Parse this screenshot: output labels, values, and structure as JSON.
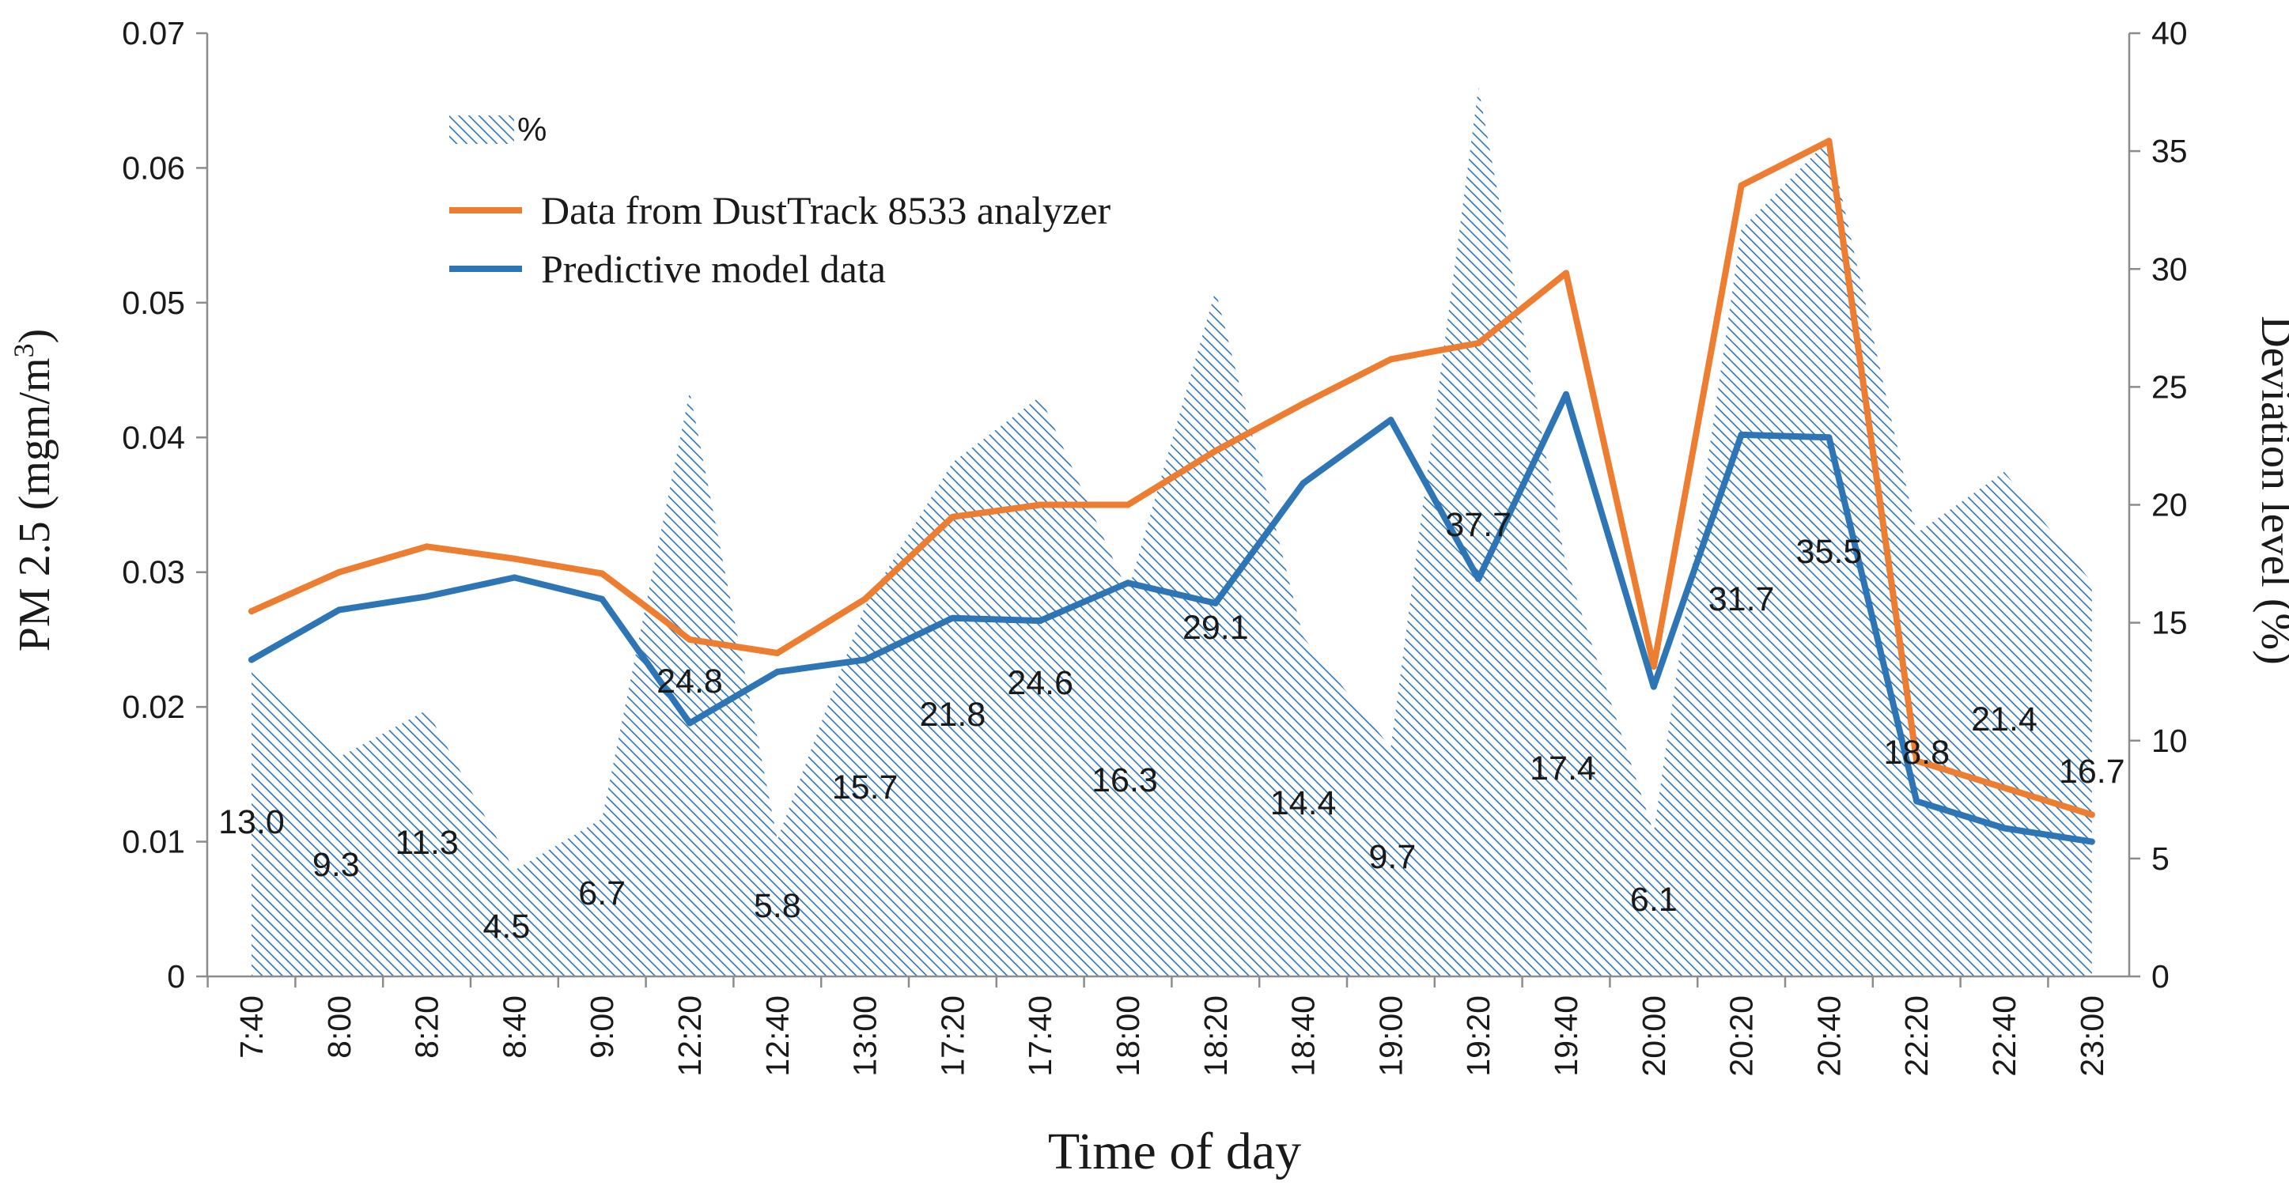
{
  "chart_data": {
    "type": "line",
    "xlabel": "Time of day",
    "ylabel_left": "PM 2.5 (mgm/m3)",
    "ylabel_left_main": "PM 2.5 (mgm/m",
    "ylabel_left_sup": "3",
    "ylabel_left_close": ")",
    "ylabel_right": "Deviation level (%)",
    "categories": [
      "7:40",
      "8:00",
      "8:20",
      "8:40",
      "9:00",
      "12:20",
      "12:40",
      "13:00",
      "17:20",
      "17:40",
      "18:00",
      "18:20",
      "18:40",
      "19:00",
      "19:20",
      "19:40",
      "20:00",
      "20:20",
      "20:40",
      "22:20",
      "22:40",
      "23:00"
    ],
    "ylim_left": [
      0,
      0.07
    ],
    "yticks_left": [
      "0",
      "0.01",
      "0.02",
      "0.03",
      "0.04",
      "0.05",
      "0.06",
      "0.07"
    ],
    "ylim_right": [
      0,
      40
    ],
    "yticks_right": [
      "0",
      "5",
      "10",
      "15",
      "20",
      "25",
      "30",
      "35",
      "40"
    ],
    "series": [
      {
        "name": "Data from DustTrack 8533 analyzer",
        "axis": "left",
        "color": "#ed7d31",
        "values": [
          0.0271,
          0.03,
          0.0319,
          0.031,
          0.0299,
          0.025,
          0.024,
          0.028,
          0.0341,
          0.035,
          0.035,
          0.039,
          0.0425,
          0.0458,
          0.047,
          0.0522,
          0.023,
          0.0587,
          0.062,
          0.016,
          0.014,
          0.012
        ]
      },
      {
        "name": "Predictive model data",
        "axis": "left",
        "color": "#2e75b6",
        "values": [
          0.0235,
          0.0272,
          0.0282,
          0.0296,
          0.028,
          0.0188,
          0.0226,
          0.0235,
          0.0266,
          0.0264,
          0.0292,
          0.0277,
          0.0366,
          0.0413,
          0.0295,
          0.0432,
          0.0215,
          0.0402,
          0.04,
          0.013,
          0.011,
          0.01
        ]
      },
      {
        "name": "%",
        "axis": "right",
        "type": "area",
        "color": "#2e75b6",
        "values": [
          13.0,
          9.3,
          11.3,
          4.5,
          6.7,
          24.8,
          5.8,
          15.7,
          21.8,
          24.6,
          16.3,
          29.1,
          14.4,
          9.7,
          37.7,
          17.4,
          6.1,
          31.7,
          35.5,
          18.8,
          21.4,
          16.7
        ],
        "labels": [
          "13.0",
          "9.3",
          "11.3",
          "4.5",
          "6.7",
          "24.8",
          "5.8",
          "15.7",
          "21.8",
          "24.6",
          "16.3",
          "29.1",
          "14.4",
          "9.7",
          "37.7",
          "17.4",
          "6.1",
          "31.7",
          "35.5",
          "18.8",
          "21.4",
          "16.7"
        ]
      }
    ],
    "legend": {
      "position": "top-left",
      "entries": [
        "%",
        "Data from DustTrack 8533 analyzer",
        "Predictive model data"
      ]
    },
    "grid": false
  }
}
